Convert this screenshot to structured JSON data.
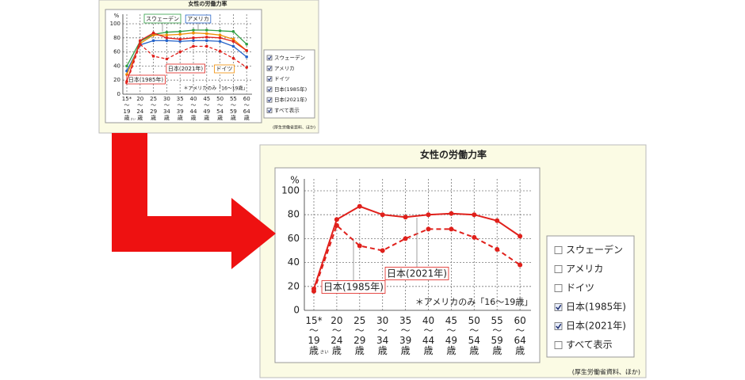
{
  "chart_data": [
    {
      "type": "line",
      "title": "女性の労働力率",
      "y_unit": "%",
      "ruby": "さい",
      "note": "＊アメリカのみ「16～19歳」",
      "source": "(厚生労働省資料、ほか)",
      "categories": [
        "15*〜19歳",
        "20〜24歳",
        "25〜29歳",
        "30〜34歳",
        "35〜39歳",
        "40〜44歳",
        "45〜49歳",
        "50〜54歳",
        "55〜59歳",
        "60〜64歳"
      ],
      "ylim": [
        0,
        100
      ],
      "yticks": [
        0,
        20,
        40,
        60,
        80,
        100
      ],
      "grid": true,
      "series": [
        {
          "name": "スウェーデン",
          "color": "#2f9e44",
          "line_style": "solid",
          "values": [
            40,
            75,
            85,
            88,
            89,
            91,
            91,
            90,
            89,
            71
          ]
        },
        {
          "name": "アメリカ",
          "color": "#2563c9",
          "line_style": "solid",
          "values": [
            33,
            70,
            76,
            76,
            75,
            76,
            76,
            75,
            68,
            53
          ]
        },
        {
          "name": "ドイツ",
          "color": "#f08c00",
          "line_style": "solid",
          "values": [
            28,
            72,
            84,
            84,
            85,
            87,
            86,
            84,
            78,
            62
          ]
        },
        {
          "name": "日本(1985年)",
          "color": "#e0201b",
          "line_style": "dashed",
          "values": [
            16,
            71,
            54,
            50,
            60,
            68,
            68,
            61,
            51,
            38
          ]
        },
        {
          "name": "日本(2021年)",
          "color": "#e0201b",
          "line_style": "solid",
          "values": [
            18,
            76,
            87,
            80,
            78,
            80,
            81,
            80,
            75,
            62
          ]
        }
      ],
      "legend": [
        {
          "label": "スウェーデン",
          "checked": true
        },
        {
          "label": "アメリカ",
          "checked": true
        },
        {
          "label": "ドイツ",
          "checked": true
        },
        {
          "label": "日本(1985年)",
          "checked": true
        },
        {
          "label": "日本(2021年)",
          "checked": true
        },
        {
          "label": "すべて表示",
          "checked": true
        }
      ]
    },
    {
      "type": "line",
      "title": "女性の労働力率",
      "y_unit": "%",
      "ruby": "さい",
      "note": "＊アメリカのみ「16～19歳」",
      "source": "(厚生労働省資料、ほか)",
      "categories": [
        "15*〜19歳",
        "20〜24歳",
        "25〜29歳",
        "30〜34歳",
        "35〜39歳",
        "40〜44歳",
        "45〜49歳",
        "50〜54歳",
        "55〜59歳",
        "60〜64歳"
      ],
      "ylim": [
        0,
        100
      ],
      "yticks": [
        0,
        20,
        40,
        60,
        80,
        100
      ],
      "grid": true,
      "series": [
        {
          "name": "日本(1985年)",
          "color": "#e0201b",
          "line_style": "dashed",
          "values": [
            16,
            71,
            54,
            50,
            60,
            68,
            68,
            61,
            51,
            38
          ]
        },
        {
          "name": "日本(2021年)",
          "color": "#e0201b",
          "line_style": "solid",
          "values": [
            18,
            76,
            87,
            80,
            78,
            80,
            81,
            80,
            75,
            62
          ]
        }
      ],
      "legend": [
        {
          "label": "スウェーデン",
          "checked": false
        },
        {
          "label": "アメリカ",
          "checked": false
        },
        {
          "label": "ドイツ",
          "checked": false
        },
        {
          "label": "日本(1985年)",
          "checked": true
        },
        {
          "label": "日本(2021年)",
          "checked": true
        },
        {
          "label": "すべて表示",
          "checked": false
        }
      ]
    }
  ]
}
